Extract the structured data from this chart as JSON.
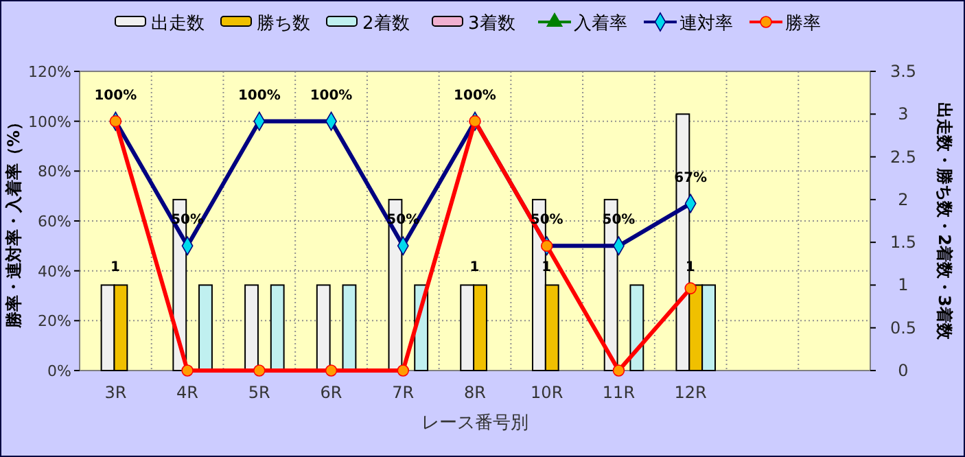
{
  "chart_data": {
    "type": "bar",
    "xlabel": "レース番号別",
    "ylabel": "勝率・連対率・入着率（%）",
    "y2label": "出走数・勝ち数・2着数・3着数",
    "categories": [
      "3R",
      "4R",
      "5R",
      "6R",
      "7R",
      "8R",
      "10R",
      "11R",
      "12R",
      null,
      null
    ],
    "series": [
      {
        "name": "出走数",
        "axis": "y2",
        "color": "#f0f0f0",
        "values": [
          1,
          2,
          1,
          1,
          2,
          1,
          2,
          2,
          3,
          null,
          null
        ]
      },
      {
        "name": "勝ち数",
        "axis": "y2",
        "color": "#f0c000",
        "values": [
          1,
          0,
          0,
          0,
          0,
          1,
          1,
          0,
          1,
          null,
          null
        ],
        "value_labels": [
          "1",
          null,
          null,
          null,
          null,
          "1",
          "1",
          null,
          "1",
          null,
          null
        ]
      },
      {
        "name": "2着数",
        "axis": "y2",
        "color": "#c0f0f0",
        "values": [
          0,
          1,
          1,
          1,
          1,
          0,
          0,
          1,
          1,
          null,
          null
        ]
      },
      {
        "name": "3着数",
        "axis": "y2",
        "color": "#f0b0d0",
        "values": [
          0,
          0,
          0,
          0,
          0,
          0,
          0,
          0,
          0,
          null,
          null
        ]
      },
      {
        "name": "入着率",
        "type": "line",
        "color": "#008000",
        "marker": "triangle",
        "values": [
          null,
          null,
          null,
          null,
          null,
          null,
          null,
          null,
          null,
          null,
          null
        ]
      },
      {
        "name": "連対率",
        "type": "line",
        "color": "#000080",
        "marker": "diamond",
        "values": [
          100,
          50,
          100,
          100,
          50,
          100,
          50,
          50,
          67,
          null,
          null
        ],
        "value_labels": [
          "100%",
          "50%",
          "100%",
          "100%",
          "50%",
          "100%",
          "50%",
          "50%",
          "67%",
          null,
          null
        ]
      },
      {
        "name": "勝率",
        "type": "line",
        "color": "#ff0000",
        "marker": "circle",
        "values": [
          100,
          0,
          0,
          0,
          0,
          100,
          50,
          0,
          33,
          null,
          null
        ]
      }
    ],
    "ylim": [
      0,
      120
    ],
    "yticks": [
      {
        "value": 0,
        "label": "0%"
      },
      {
        "value": 20,
        "label": "20%"
      },
      {
        "value": 40,
        "label": "40%"
      },
      {
        "value": 60,
        "label": "60%"
      },
      {
        "value": 80,
        "label": "80%"
      },
      {
        "value": 100,
        "label": "100%"
      },
      {
        "value": 120,
        "label": "120%"
      }
    ],
    "y2lim": [
      0,
      3.5
    ],
    "y2ticks": [
      0,
      0.5,
      1,
      1.5,
      2,
      2.5,
      3,
      3.5
    ],
    "grid": true,
    "legend": "top"
  }
}
